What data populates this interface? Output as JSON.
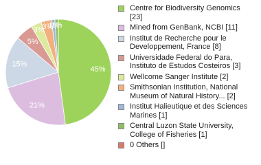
{
  "chart_data": {
    "type": "pie",
    "categories": [
      "Centre for Biodiversity Genomics [23]",
      "Mined from GenBank, NCBI [11]",
      "Institut de Recherche pour le Developpement, France [8]",
      "Universidade Federal do Para, Instituto de Estudos Costeiros [3]",
      "Wellcome Sanger Institute [2]",
      "Smithsonian Institution, National Museum of Natural History... [2]",
      "Institut Halieutique et des Sciences Marines [1]",
      "Central Luzon State University, College of Fisheries [1]",
      "0 Others []"
    ],
    "values": [
      45,
      21,
      15,
      5,
      3,
      3,
      1,
      1,
      0
    ],
    "value_labels": [
      "45%",
      "21%",
      "15%",
      "5%",
      "3%",
      "3%",
      "1%",
      "1%",
      "0%"
    ],
    "colors": [
      "#9dd35a",
      "#dcbde0",
      "#cdd8e6",
      "#d99a93",
      "#dde99b",
      "#f2b07e",
      "#9ebadb",
      "#8fbf63",
      "#dd7766"
    ]
  }
}
